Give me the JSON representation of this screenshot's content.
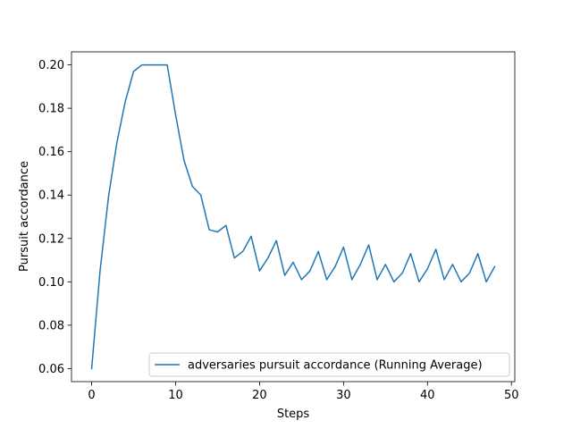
{
  "chart_data": {
    "type": "line",
    "title": "",
    "xlabel": "Steps",
    "ylabel": "Pursuit accordance",
    "xlim": [
      -2.4,
      50.4
    ],
    "ylim": [
      0.054,
      0.206
    ],
    "xticks": [
      0,
      10,
      20,
      30,
      40,
      50
    ],
    "yticks": [
      0.06,
      0.08,
      0.1,
      0.12,
      0.14,
      0.16,
      0.18,
      0.2
    ],
    "ytick_labels": [
      "0.06",
      "0.08",
      "0.10",
      "0.12",
      "0.14",
      "0.16",
      "0.18",
      "0.20"
    ],
    "grid": false,
    "legend_position": "lower-right",
    "series": [
      {
        "name": "adversaries pursuit accordance (Running Average)",
        "color": "#1f77b4",
        "x": [
          0,
          1,
          2,
          3,
          4,
          5,
          6,
          7,
          8,
          9,
          10,
          11,
          12,
          13,
          14,
          15,
          16,
          17,
          18,
          19,
          20,
          21,
          22,
          23,
          24,
          25,
          26,
          27,
          28,
          29,
          30,
          31,
          32,
          33,
          34,
          35,
          36,
          37,
          38,
          39,
          40,
          41,
          42,
          43,
          44,
          45,
          46,
          47,
          48
        ],
        "y": [
          0.06,
          0.105,
          0.139,
          0.164,
          0.183,
          0.197,
          0.2,
          0.2,
          0.2,
          0.2,
          0.177,
          0.156,
          0.144,
          0.14,
          0.124,
          0.123,
          0.126,
          0.111,
          0.114,
          0.121,
          0.105,
          0.111,
          0.119,
          0.103,
          0.109,
          0.101,
          0.105,
          0.114,
          0.101,
          0.107,
          0.116,
          0.101,
          0.108,
          0.117,
          0.101,
          0.108,
          0.1,
          0.104,
          0.113,
          0.1,
          0.106,
          0.115,
          0.101,
          0.108,
          0.1,
          0.104,
          0.113,
          0.1,
          0.107
        ]
      }
    ]
  }
}
